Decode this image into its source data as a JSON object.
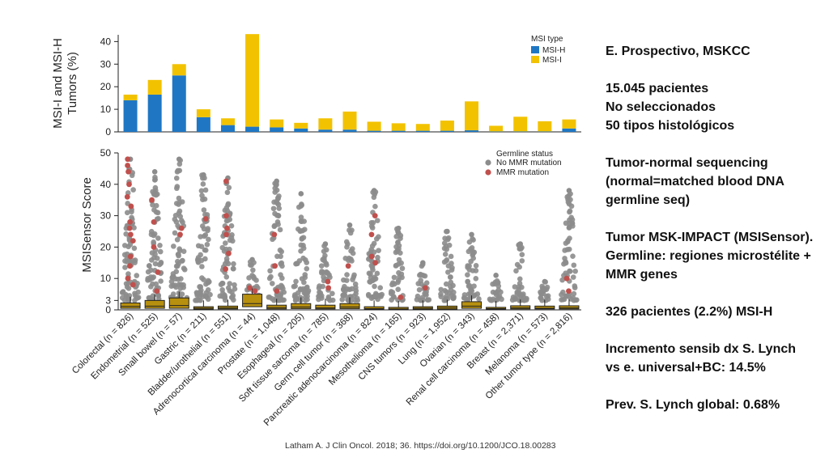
{
  "chart_data": [
    {
      "type": "bar",
      "stacked": true,
      "ylabel": "MSI-I and MSI-H Tumors (%)",
      "ylim": [
        0,
        43
      ],
      "yticks": [
        0,
        10,
        20,
        30,
        40
      ],
      "legend": {
        "title": "MSI type",
        "position": "top-right"
      },
      "categories": [
        "Colorectal (n = 826)",
        "Endometrial (n = 525)",
        "Small bowel (n = 57)",
        "Gastric (n = 211)",
        "Bladder/urothelial (n = 551)",
        "Adrenocortical carcinoma (n = 44)",
        "Prostate (n = 1,048)",
        "Esophageal (n = 205)",
        "Soft tissue sarcoma (n = 785)",
        "Germ cell tumor (n = 368)",
        "Pancreatic adenocarcinoma (n = 824)",
        "Mesothelioma (n = 165)",
        "CNS tumors (n = 923)",
        "Lung (n = 1,952)",
        "Ovarian (n = 343)",
        "Renal cell carcinoma (n = 458)",
        "Breast (n = 2,371)",
        "Melanoma (n = 573)",
        "Other tumor type (n = 2,816)"
      ],
      "series": [
        {
          "name": "MSI-H",
          "color": "#1f77c4",
          "values": [
            14,
            16.5,
            25,
            6.5,
            3,
            2.3,
            2,
            1.5,
            1,
            1,
            0.5,
            0.5,
            0.5,
            0.5,
            0.7,
            0.2,
            0.2,
            0.2,
            1.5
          ]
        },
        {
          "name": "MSI-I",
          "color": "#f2c200",
          "values": [
            2.5,
            6.5,
            5,
            3.5,
            3,
            41,
            3.5,
            2.5,
            5,
            8,
            4,
            3.3,
            3,
            4.5,
            12.8,
            2.5,
            6.5,
            4.5,
            4
          ]
        }
      ]
    },
    {
      "type": "scatter",
      "ylabel": "MSISensor Score",
      "ylim": [
        0,
        50
      ],
      "yticks": [
        0,
        3,
        10,
        20,
        30,
        40,
        50
      ],
      "legend": {
        "title": "Germline status",
        "position": "top-right"
      },
      "series": [
        {
          "name": "No MMR mutation",
          "color": "#8c8c8c"
        },
        {
          "name": "MMR mutation",
          "color": "#c0504d"
        }
      ],
      "box_color": "#b8900f",
      "boxes": [
        {
          "q1": 0.5,
          "q3": 2.2,
          "median": 1.1,
          "max_score": 48,
          "mmr": [
            48,
            46,
            44,
            40,
            36,
            33,
            28,
            26,
            24,
            22,
            17,
            14,
            10,
            8
          ]
        },
        {
          "q1": 0.5,
          "q3": 3.0,
          "median": 1.2,
          "max_score": 44,
          "mmr": [
            35,
            28,
            20,
            12,
            6
          ]
        },
        {
          "q1": 0.5,
          "q3": 3.8,
          "median": 1.4,
          "max_score": 48,
          "mmr": [
            26,
            24
          ]
        },
        {
          "q1": 0.2,
          "q3": 1.0,
          "median": 0.5,
          "max_score": 43,
          "mmr": [
            29
          ]
        },
        {
          "q1": 0.3,
          "q3": 1.2,
          "median": 0.6,
          "max_score": 42,
          "mmr": [
            41,
            30,
            26,
            24,
            18,
            13
          ]
        },
        {
          "q1": 1.0,
          "q3": 5.0,
          "median": 2.0,
          "max_score": 16,
          "mmr": [
            7,
            6
          ]
        },
        {
          "q1": 0.3,
          "q3": 1.5,
          "median": 0.7,
          "max_score": 41,
          "mmr": [
            24,
            14,
            6
          ]
        },
        {
          "q1": 0.4,
          "q3": 2.0,
          "median": 0.9,
          "max_score": 37,
          "mmr": []
        },
        {
          "q1": 0.3,
          "q3": 1.5,
          "median": 0.6,
          "max_score": 21,
          "mmr": [
            9,
            7
          ]
        },
        {
          "q1": 0.4,
          "q3": 2.0,
          "median": 0.9,
          "max_score": 27,
          "mmr": [
            14
          ]
        },
        {
          "q1": 0.2,
          "q3": 1.0,
          "median": 0.4,
          "max_score": 38,
          "mmr": [
            30,
            24,
            17,
            15
          ]
        },
        {
          "q1": 0.2,
          "q3": 0.8,
          "median": 0.3,
          "max_score": 26,
          "mmr": [
            4
          ]
        },
        {
          "q1": 0.2,
          "q3": 1.0,
          "median": 0.5,
          "max_score": 15,
          "mmr": [
            7
          ]
        },
        {
          "q1": 0.2,
          "q3": 1.2,
          "median": 0.6,
          "max_score": 25,
          "mmr": []
        },
        {
          "q1": 0.5,
          "q3": 2.6,
          "median": 1.2,
          "max_score": 24,
          "mmr": []
        },
        {
          "q1": 0.2,
          "q3": 0.8,
          "median": 0.4,
          "max_score": 11,
          "mmr": []
        },
        {
          "q1": 0.3,
          "q3": 1.3,
          "median": 0.6,
          "max_score": 21,
          "mmr": []
        },
        {
          "q1": 0.3,
          "q3": 1.2,
          "median": 0.5,
          "max_score": 9,
          "mmr": []
        },
        {
          "q1": 0.3,
          "q3": 1.3,
          "median": 0.6,
          "max_score": 38,
          "mmr": [
            10,
            6
          ]
        }
      ]
    }
  ],
  "notes": {
    "title": "E. Prospectivo, MSKCC",
    "cohort": [
      "15.045 pacientes",
      "No seleccionados",
      "50 tipos histológicos"
    ],
    "sequencing": [
      "Tumor-normal sequencing",
      "(normal=matched blood DNA",
      "germline seq)"
    ],
    "methods": [
      "Tumor MSK-IMPACT (MSISensor).",
      "Germline: regiones microstélite +",
      "MMR genes"
    ],
    "msi_h": "326 pacientes (2.2%) MSI-H",
    "lynch_increment": [
      "Incremento sensib dx S. Lynch",
      "vs e. universal+BC: 14.5%"
    ],
    "lynch_prevalence": "Prev. S. Lynch global: 0.68%"
  },
  "citation": "Latham A. J Clin Oncol. 2018; 36. https://doi.org/10.1200/JCO.18.00283"
}
